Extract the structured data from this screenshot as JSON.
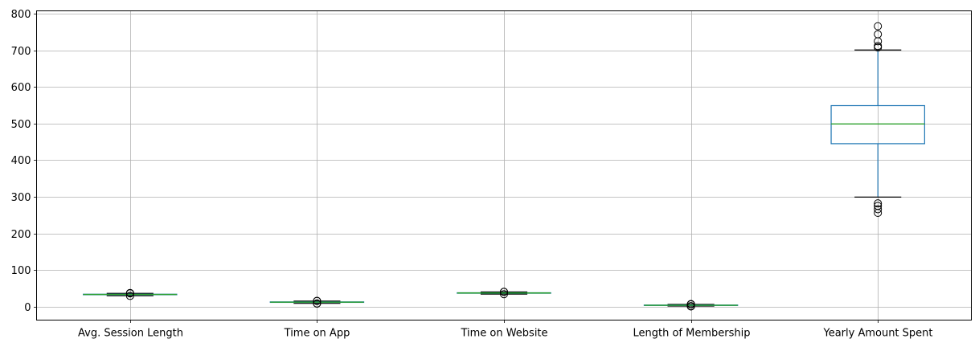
{
  "chart_data": {
    "type": "box",
    "title": "",
    "xlabel": "",
    "ylabel": "",
    "ylim": [
      -37,
      808
    ],
    "yticks": [
      0,
      100,
      200,
      300,
      400,
      500,
      600,
      700,
      800
    ],
    "grid": true,
    "categories": [
      "Avg. Session Length",
      "Time on App",
      "Time on Website",
      "Length of Membership",
      "Yearly Amount Spent"
    ],
    "boxes": [
      {
        "name": "Avg. Session Length",
        "whisker_low": 29.5,
        "q1": 32.3,
        "median": 33.1,
        "q3": 33.7,
        "whisker_high": 35.9,
        "outliers": [
          29.0,
          36.1,
          36.6,
          37.0
        ]
      },
      {
        "name": "Time on App",
        "whisker_low": 8.7,
        "q1": 11.4,
        "median": 12.0,
        "q3": 12.8,
        "whisker_high": 14.9,
        "outliers": [
          8.0,
          8.5,
          15.1,
          15.6
        ]
      },
      {
        "name": "Time on Website",
        "whisker_low": 34.0,
        "q1": 36.3,
        "median": 37.1,
        "q3": 37.7,
        "whisker_high": 39.9,
        "outliers": [
          33.9,
          40.0,
          40.3
        ]
      },
      {
        "name": "Length of Membership",
        "whisker_low": 1.3,
        "q1": 3.0,
        "median": 3.5,
        "q3": 4.1,
        "whisker_high": 5.9,
        "outliers": [
          0.3,
          0.8,
          1.0,
          6.0,
          6.4,
          6.9
        ]
      },
      {
        "name": "Yearly Amount Spent",
        "whisker_low": 299,
        "q1": 445,
        "median": 499,
        "q3": 549,
        "whisker_high": 701,
        "outliers": [
          256,
          266,
          275,
          282,
          708,
          712,
          725,
          744,
          766
        ]
      }
    ],
    "colors": {
      "box": "#1f77b4",
      "median": "#2ca02c",
      "cap": "#000000",
      "grid": "#b0b0b0"
    }
  }
}
